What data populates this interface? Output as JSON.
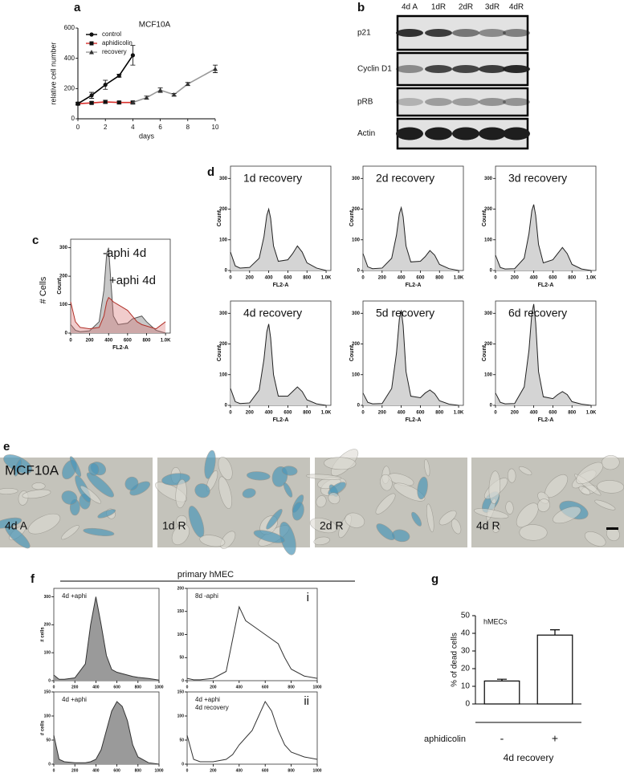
{
  "panel_labels": [
    "a",
    "b",
    "c",
    "d",
    "e",
    "f",
    "g"
  ],
  "blot": {
    "lanes": [
      "4d A",
      "1dR",
      "2dR",
      "3dR",
      "4dR"
    ],
    "proteins": [
      "p21",
      "Cyclin D1",
      "pRB",
      "Actin"
    ]
  },
  "micrographs": {
    "cell_line": "MCF10A",
    "labels": [
      "4d A",
      "1d R",
      "2d R",
      "4d R"
    ]
  },
  "hmec_header": "primary hMEC",
  "chart_data": [
    {
      "type": "line",
      "title": "MCF10A",
      "xlabel": "days",
      "ylabel": "relative cell number",
      "xlim": [
        0,
        10
      ],
      "ylim": [
        0,
        600
      ],
      "xticks": [
        0,
        2,
        4,
        6,
        8,
        10
      ],
      "yticks": [
        0,
        200,
        400,
        600
      ],
      "legend": "upper-left",
      "series": [
        {
          "name": "control",
          "color": "#000000",
          "marker": "circle",
          "x": [
            0,
            1,
            2,
            3,
            4
          ],
          "values": [
            100,
            155,
            225,
            285,
            420
          ],
          "errors": [
            8,
            20,
            30,
            10,
            65
          ]
        },
        {
          "name": "aphidicolin",
          "color": "#d9302c",
          "marker": "square",
          "x": [
            0,
            1,
            2,
            3,
            4
          ],
          "values": [
            100,
            105,
            112,
            108,
            108
          ],
          "errors": [
            5,
            8,
            10,
            8,
            8
          ]
        },
        {
          "name": "recovery",
          "color": "#999999",
          "marker": "triangle",
          "x": [
            4,
            5,
            6,
            7,
            8,
            10
          ],
          "values": [
            108,
            140,
            190,
            160,
            230,
            330
          ],
          "errors": [
            8,
            10,
            15,
            8,
            10,
            25
          ]
        }
      ]
    },
    {
      "type": "area",
      "xlabel": "FL2-A",
      "ylabel": "Count",
      "outer_label": "# Cells",
      "xlim": [
        0,
        1050
      ],
      "ylim": [
        0,
        330
      ],
      "xticks": [
        0,
        200,
        400,
        600,
        800,
        {
          "value": 1000,
          "label": "1.0K"
        }
      ],
      "yticks": [
        0,
        100,
        200,
        300
      ],
      "x": [
        0,
        50,
        100,
        200,
        300,
        350,
        380,
        400,
        420,
        450,
        500,
        600,
        650,
        700,
        750,
        800,
        900,
        1000
      ],
      "series": [
        {
          "name": "-aphi 4d",
          "color": "#555555",
          "fill": "#c8c8c8",
          "values": [
            30,
            10,
            5,
            8,
            40,
            150,
            280,
            300,
            200,
            60,
            30,
            35,
            50,
            55,
            60,
            40,
            10,
            0
          ]
        },
        {
          "name": "+aphi 4d",
          "color": "#b03028",
          "fill": "rgba(215,110,110,0.35)",
          "values": [
            110,
            40,
            20,
            15,
            20,
            60,
            110,
            125,
            120,
            110,
            100,
            80,
            60,
            40,
            30,
            25,
            15,
            40
          ]
        }
      ]
    },
    {
      "type": "area",
      "title": "1d recovery",
      "xlabel": "FL2-A",
      "ylabel": "Count",
      "xlim": [
        0,
        1050
      ],
      "ylim": [
        0,
        340
      ],
      "xticks": [
        0,
        200,
        400,
        600,
        800,
        {
          "value": 1000,
          "label": "1.0K"
        }
      ],
      "yticks": [
        0,
        100,
        200,
        300
      ],
      "x": [
        0,
        50,
        100,
        200,
        300,
        350,
        380,
        400,
        420,
        450,
        500,
        600,
        650,
        700,
        750,
        800,
        900,
        1000
      ],
      "series": [
        {
          "color": "#222222",
          "fill": "#d4d4d4",
          "values": [
            60,
            15,
            8,
            10,
            40,
            110,
            180,
            200,
            170,
            80,
            30,
            35,
            55,
            80,
            60,
            25,
            8,
            0
          ]
        }
      ]
    },
    {
      "type": "area",
      "title": "2d recovery",
      "xlabel": "FL2-A",
      "ylabel": "Count",
      "xlim": [
        0,
        1050
      ],
      "ylim": [
        0,
        340
      ],
      "xticks": [
        0,
        200,
        400,
        600,
        800,
        {
          "value": 1000,
          "label": "1.0K"
        }
      ],
      "yticks": [
        0,
        100,
        200,
        300
      ],
      "x": [
        0,
        50,
        100,
        200,
        300,
        350,
        380,
        400,
        420,
        450,
        500,
        600,
        650,
        700,
        750,
        800,
        900,
        1000
      ],
      "series": [
        {
          "color": "#222222",
          "fill": "#d4d4d4",
          "values": [
            55,
            12,
            6,
            8,
            40,
            115,
            185,
            205,
            175,
            80,
            28,
            30,
            45,
            65,
            50,
            20,
            6,
            0
          ]
        }
      ]
    },
    {
      "type": "area",
      "title": "3d recovery",
      "xlabel": "FL2-A",
      "ylabel": "Count",
      "xlim": [
        0,
        1050
      ],
      "ylim": [
        0,
        340
      ],
      "xticks": [
        0,
        200,
        400,
        600,
        800,
        {
          "value": 1000,
          "label": "1.0K"
        }
      ],
      "yticks": [
        0,
        100,
        200,
        300
      ],
      "x": [
        0,
        50,
        100,
        200,
        300,
        350,
        380,
        400,
        420,
        450,
        500,
        600,
        650,
        700,
        750,
        800,
        900,
        1000
      ],
      "series": [
        {
          "color": "#222222",
          "fill": "#d4d4d4",
          "values": [
            50,
            10,
            5,
            6,
            40,
            120,
            195,
            215,
            180,
            85,
            25,
            35,
            55,
            75,
            55,
            20,
            5,
            0
          ]
        }
      ]
    },
    {
      "type": "area",
      "title": "4d recovery",
      "xlabel": "FL2-A",
      "ylabel": "Count",
      "xlim": [
        0,
        1050
      ],
      "ylim": [
        0,
        340
      ],
      "xticks": [
        0,
        200,
        400,
        600,
        800,
        {
          "value": 1000,
          "label": "1.0K"
        }
      ],
      "yticks": [
        0,
        100,
        200,
        300
      ],
      "x": [
        0,
        50,
        100,
        200,
        300,
        350,
        380,
        400,
        420,
        450,
        500,
        600,
        650,
        700,
        750,
        800,
        900,
        1000
      ],
      "series": [
        {
          "color": "#222222",
          "fill": "#d4d4d4",
          "values": [
            55,
            12,
            6,
            8,
            50,
            150,
            240,
            265,
            220,
            100,
            30,
            30,
            45,
            60,
            45,
            18,
            5,
            0
          ]
        }
      ]
    },
    {
      "type": "area",
      "title": "5d recovery",
      "xlabel": "FL2-A",
      "ylabel": "Count",
      "xlim": [
        0,
        1050
      ],
      "ylim": [
        0,
        340
      ],
      "xticks": [
        0,
        200,
        400,
        600,
        800,
        {
          "value": 1000,
          "label": "1.0K"
        }
      ],
      "yticks": [
        0,
        100,
        200,
        300
      ],
      "x": [
        0,
        50,
        100,
        200,
        300,
        350,
        380,
        400,
        420,
        450,
        500,
        600,
        650,
        700,
        750,
        800,
        900,
        1000
      ],
      "series": [
        {
          "color": "#222222",
          "fill": "#d4d4d4",
          "values": [
            40,
            10,
            5,
            6,
            55,
            170,
            280,
            310,
            260,
            110,
            30,
            25,
            40,
            50,
            38,
            15,
            4,
            0
          ]
        }
      ]
    },
    {
      "type": "area",
      "title": "6d recovery",
      "xlabel": "FL2-A",
      "ylabel": "Count",
      "xlim": [
        0,
        1050
      ],
      "ylim": [
        0,
        340
      ],
      "xticks": [
        0,
        200,
        400,
        600,
        800,
        {
          "value": 1000,
          "label": "1.0K"
        }
      ],
      "yticks": [
        0,
        100,
        200,
        300
      ],
      "x": [
        0,
        50,
        100,
        200,
        300,
        350,
        380,
        400,
        420,
        450,
        500,
        600,
        650,
        700,
        750,
        800,
        900,
        1000
      ],
      "series": [
        {
          "color": "#222222",
          "fill": "#d4d4d4",
          "values": [
            40,
            10,
            5,
            6,
            60,
            180,
            300,
            330,
            270,
            110,
            28,
            22,
            35,
            45,
            35,
            12,
            4,
            0
          ]
        }
      ]
    },
    {
      "type": "area",
      "title": "4d +aphi",
      "ylabel": "# cells",
      "xlim": [
        0,
        1000
      ],
      "ylim": [
        0,
        330
      ],
      "xticks": [
        0,
        200,
        400,
        600,
        800,
        1000
      ],
      "yticks": [
        0,
        100,
        200,
        300
      ],
      "x": [
        0,
        50,
        100,
        200,
        300,
        350,
        400,
        450,
        500,
        550,
        600,
        650,
        700,
        750,
        800,
        900,
        1000
      ],
      "series": [
        {
          "color": "#333333",
          "fill": "#9a9a9a",
          "values": [
            20,
            5,
            5,
            10,
            60,
            200,
            300,
            200,
            90,
            40,
            30,
            25,
            20,
            15,
            12,
            8,
            2
          ]
        }
      ]
    },
    {
      "type": "area",
      "title": "8d -aphi",
      "tag": "i",
      "xlim": [
        0,
        1000
      ],
      "ylim": [
        0,
        200
      ],
      "xticks": [
        0,
        200,
        400,
        600,
        800,
        1000
      ],
      "yticks": [
        0,
        50,
        100,
        150,
        200
      ],
      "x": [
        0,
        50,
        100,
        200,
        300,
        350,
        400,
        450,
        500,
        550,
        600,
        650,
        700,
        750,
        800,
        900,
        1000
      ],
      "series": [
        {
          "color": "#333333",
          "values": [
            5,
            2,
            2,
            5,
            20,
            90,
            160,
            130,
            120,
            110,
            100,
            90,
            80,
            50,
            25,
            10,
            5
          ]
        }
      ]
    },
    {
      "type": "area",
      "title": "4d +aphi",
      "ylabel": "# cells",
      "xlim": [
        0,
        1000
      ],
      "ylim": [
        0,
        150
      ],
      "xticks": [
        0,
        200,
        400,
        600,
        800,
        1000
      ],
      "yticks": [
        0,
        50,
        100,
        150
      ],
      "x": [
        0,
        50,
        100,
        200,
        300,
        350,
        400,
        450,
        500,
        550,
        600,
        650,
        700,
        750,
        800,
        900,
        1000
      ],
      "series": [
        {
          "color": "#333333",
          "fill": "#9a9a9a",
          "values": [
            60,
            10,
            5,
            3,
            3,
            5,
            10,
            30,
            70,
            110,
            130,
            120,
            90,
            40,
            15,
            3,
            0
          ]
        }
      ]
    },
    {
      "type": "area",
      "title": "4d +aphi",
      "subtitle": "4d recovery",
      "tag": "ii",
      "xlim": [
        0,
        1000
      ],
      "ylim": [
        0,
        150
      ],
      "xticks": [
        0,
        200,
        400,
        600,
        800,
        1000
      ],
      "yticks": [
        0,
        50,
        100,
        150
      ],
      "x": [
        0,
        50,
        100,
        200,
        300,
        350,
        400,
        450,
        500,
        550,
        600,
        650,
        700,
        750,
        800,
        900,
        1000
      ],
      "series": [
        {
          "color": "#333333",
          "values": [
            60,
            10,
            5,
            5,
            10,
            20,
            40,
            55,
            70,
            100,
            130,
            110,
            70,
            40,
            25,
            15,
            10
          ]
        }
      ]
    },
    {
      "type": "bar",
      "annotation": "hMECs",
      "ylabel": "% of dead cells",
      "row_label": "aphidicolin",
      "xlabel": "4d recovery",
      "categories": [
        "-",
        "+"
      ],
      "values": [
        13,
        39
      ],
      "errors": [
        1,
        3
      ],
      "color": "#ffffff",
      "ylim": [
        0,
        50
      ],
      "yticks": [
        0,
        10,
        20,
        30,
        40,
        50
      ]
    }
  ]
}
